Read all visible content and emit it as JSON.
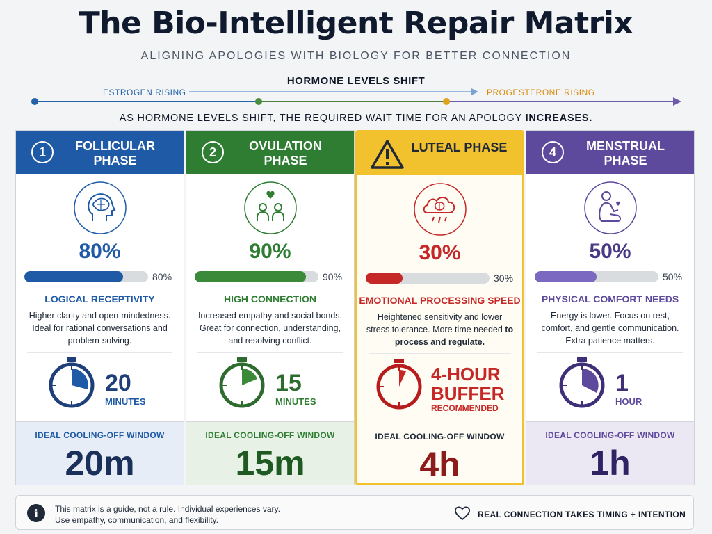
{
  "header": {
    "title": "The Bio-Intelligent Repair Matrix",
    "subtitle": "ALIGNING APOLOGIES WITH BIOLOGY FOR BETTER CONNECTION",
    "hormone_label": "HORMONE LEVELS SHIFT",
    "estrogen_label": "ESTROGEN RISING",
    "progesterone_label": "PROGESTERONE RISING",
    "explain_text": "AS HORMONE LEVELS SHIFT, THE REQUIRED WAIT TIME FOR AN  APOLOGY ",
    "explain_bold": "INCREASES."
  },
  "colors": {
    "follicular": "#1f5aa6",
    "ovulation": "#2e7d32",
    "luteal": "#c62828",
    "luteal_header": "#f2c12e",
    "menstrual": "#5e4a9c",
    "estrogen_line": "#2563a8",
    "progesterone_line": "#d98a0b"
  },
  "phases": [
    {
      "number": "1",
      "name": "FOLLICULAR PHASE",
      "icon": "brain-head-icon",
      "percent_label": "80%",
      "percent": 80,
      "trait": "LOGICAL RECEPTIVITY",
      "desc": "Higher clarity and open-mindedness. Ideal for rational conversations and problem-solving.",
      "desc_bold": "",
      "timer_value": "20",
      "timer_unit": "MINUTES",
      "cool_label": "IDEAL COOLING-OFF WINDOW",
      "cool_value": "20m"
    },
    {
      "number": "2",
      "name": "OVULATION PHASE",
      "icon": "people-heart-icon",
      "percent_label": "90%",
      "percent": 90,
      "trait": "HIGH CONNECTION",
      "desc": "Increased empathy and social bonds. Great for connection, understanding, and resolving conflict.",
      "desc_bold": "",
      "timer_value": "15",
      "timer_unit": "MINUTES",
      "cool_label": "IDEAL COOLING-OFF WINDOW",
      "cool_value": "15m"
    },
    {
      "number": "",
      "name": "LUTEAL PHASE",
      "icon": "storm-cloud-brain-icon",
      "percent_label": "30%",
      "percent": 30,
      "trait": "EMOTIONAL PROCESSING SPEED",
      "desc": "Heightened sensitivity and lower stress tolerance. More time needed ",
      "desc_bold": "to process and regulate.",
      "timer_value": "4-HOUR BUFFER",
      "timer_unit": "RECOMMENDED",
      "cool_label": "IDEAL COOLING-OFF WINDOW",
      "cool_value": "4h"
    },
    {
      "number": "4",
      "name": "MENSTRUAL PHASE",
      "icon": "self-care-hug-icon",
      "percent_label": "50%",
      "percent": 50,
      "trait": "PHYSICAL COMFORT NEEDS",
      "desc": "Energy is lower.  Focus on rest, comfort, and gentle communication. Extra patience matters.",
      "desc_bold": "",
      "timer_value": "1",
      "timer_unit": "HOUR",
      "cool_label": "IDEAL COOLING-OFF WINDOW",
      "cool_value": "1h"
    }
  ],
  "footer": {
    "note_line1": "This matrix is a guide, not a rule. Individual experiences vary.",
    "note_line2": "Use empathy, communication, and flexibility.",
    "tagline": "REAL CONNECTION TAKES TIMING + INTENTION"
  }
}
